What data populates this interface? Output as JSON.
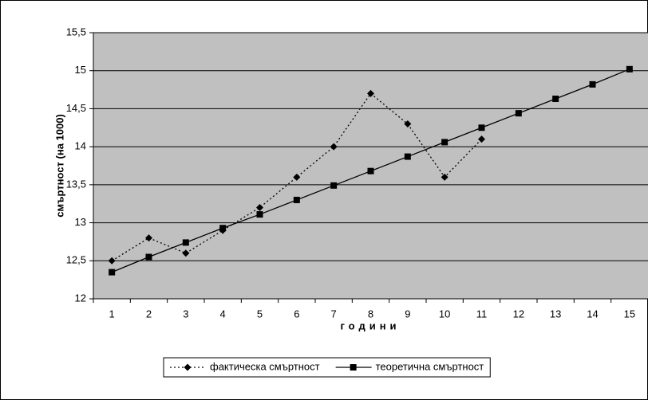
{
  "chart_data": {
    "type": "line",
    "x_label": "години",
    "y_label": "смъртност (на 1000)",
    "categories": [
      "1",
      "2",
      "3",
      "4",
      "5",
      "6",
      "7",
      "8",
      "9",
      "10",
      "11",
      "12",
      "13",
      "14",
      "15"
    ],
    "series": [
      {
        "name": "фактическа смъртност",
        "color": "#000000",
        "line_style": "dotted",
        "marker": "diamond",
        "values": [
          12.5,
          12.8,
          12.6,
          12.9,
          13.2,
          13.6,
          14.0,
          14.7,
          14.3,
          13.6,
          14.1,
          null,
          null,
          null,
          null
        ]
      },
      {
        "name": "теоретична смъртност",
        "color": "#000000",
        "line_style": "solid",
        "marker": "square",
        "values": [
          12.35,
          12.55,
          12.74,
          12.93,
          13.11,
          13.3,
          13.49,
          13.68,
          13.87,
          14.06,
          14.25,
          14.44,
          14.63,
          14.82,
          15.02
        ]
      }
    ],
    "ylim": [
      12,
      15.5
    ],
    "yticks": [
      12,
      {
        "value": 12.5,
        "label": "12,5"
      },
      13,
      {
        "value": 13.5,
        "label": "13,5"
      },
      14,
      {
        "value": 14.5,
        "label": "14,5"
      },
      15,
      {
        "value": 15.5,
        "label": "15,5"
      }
    ],
    "grid": true,
    "plot_background": "#c0c0c0",
    "legend": "bottom"
  }
}
